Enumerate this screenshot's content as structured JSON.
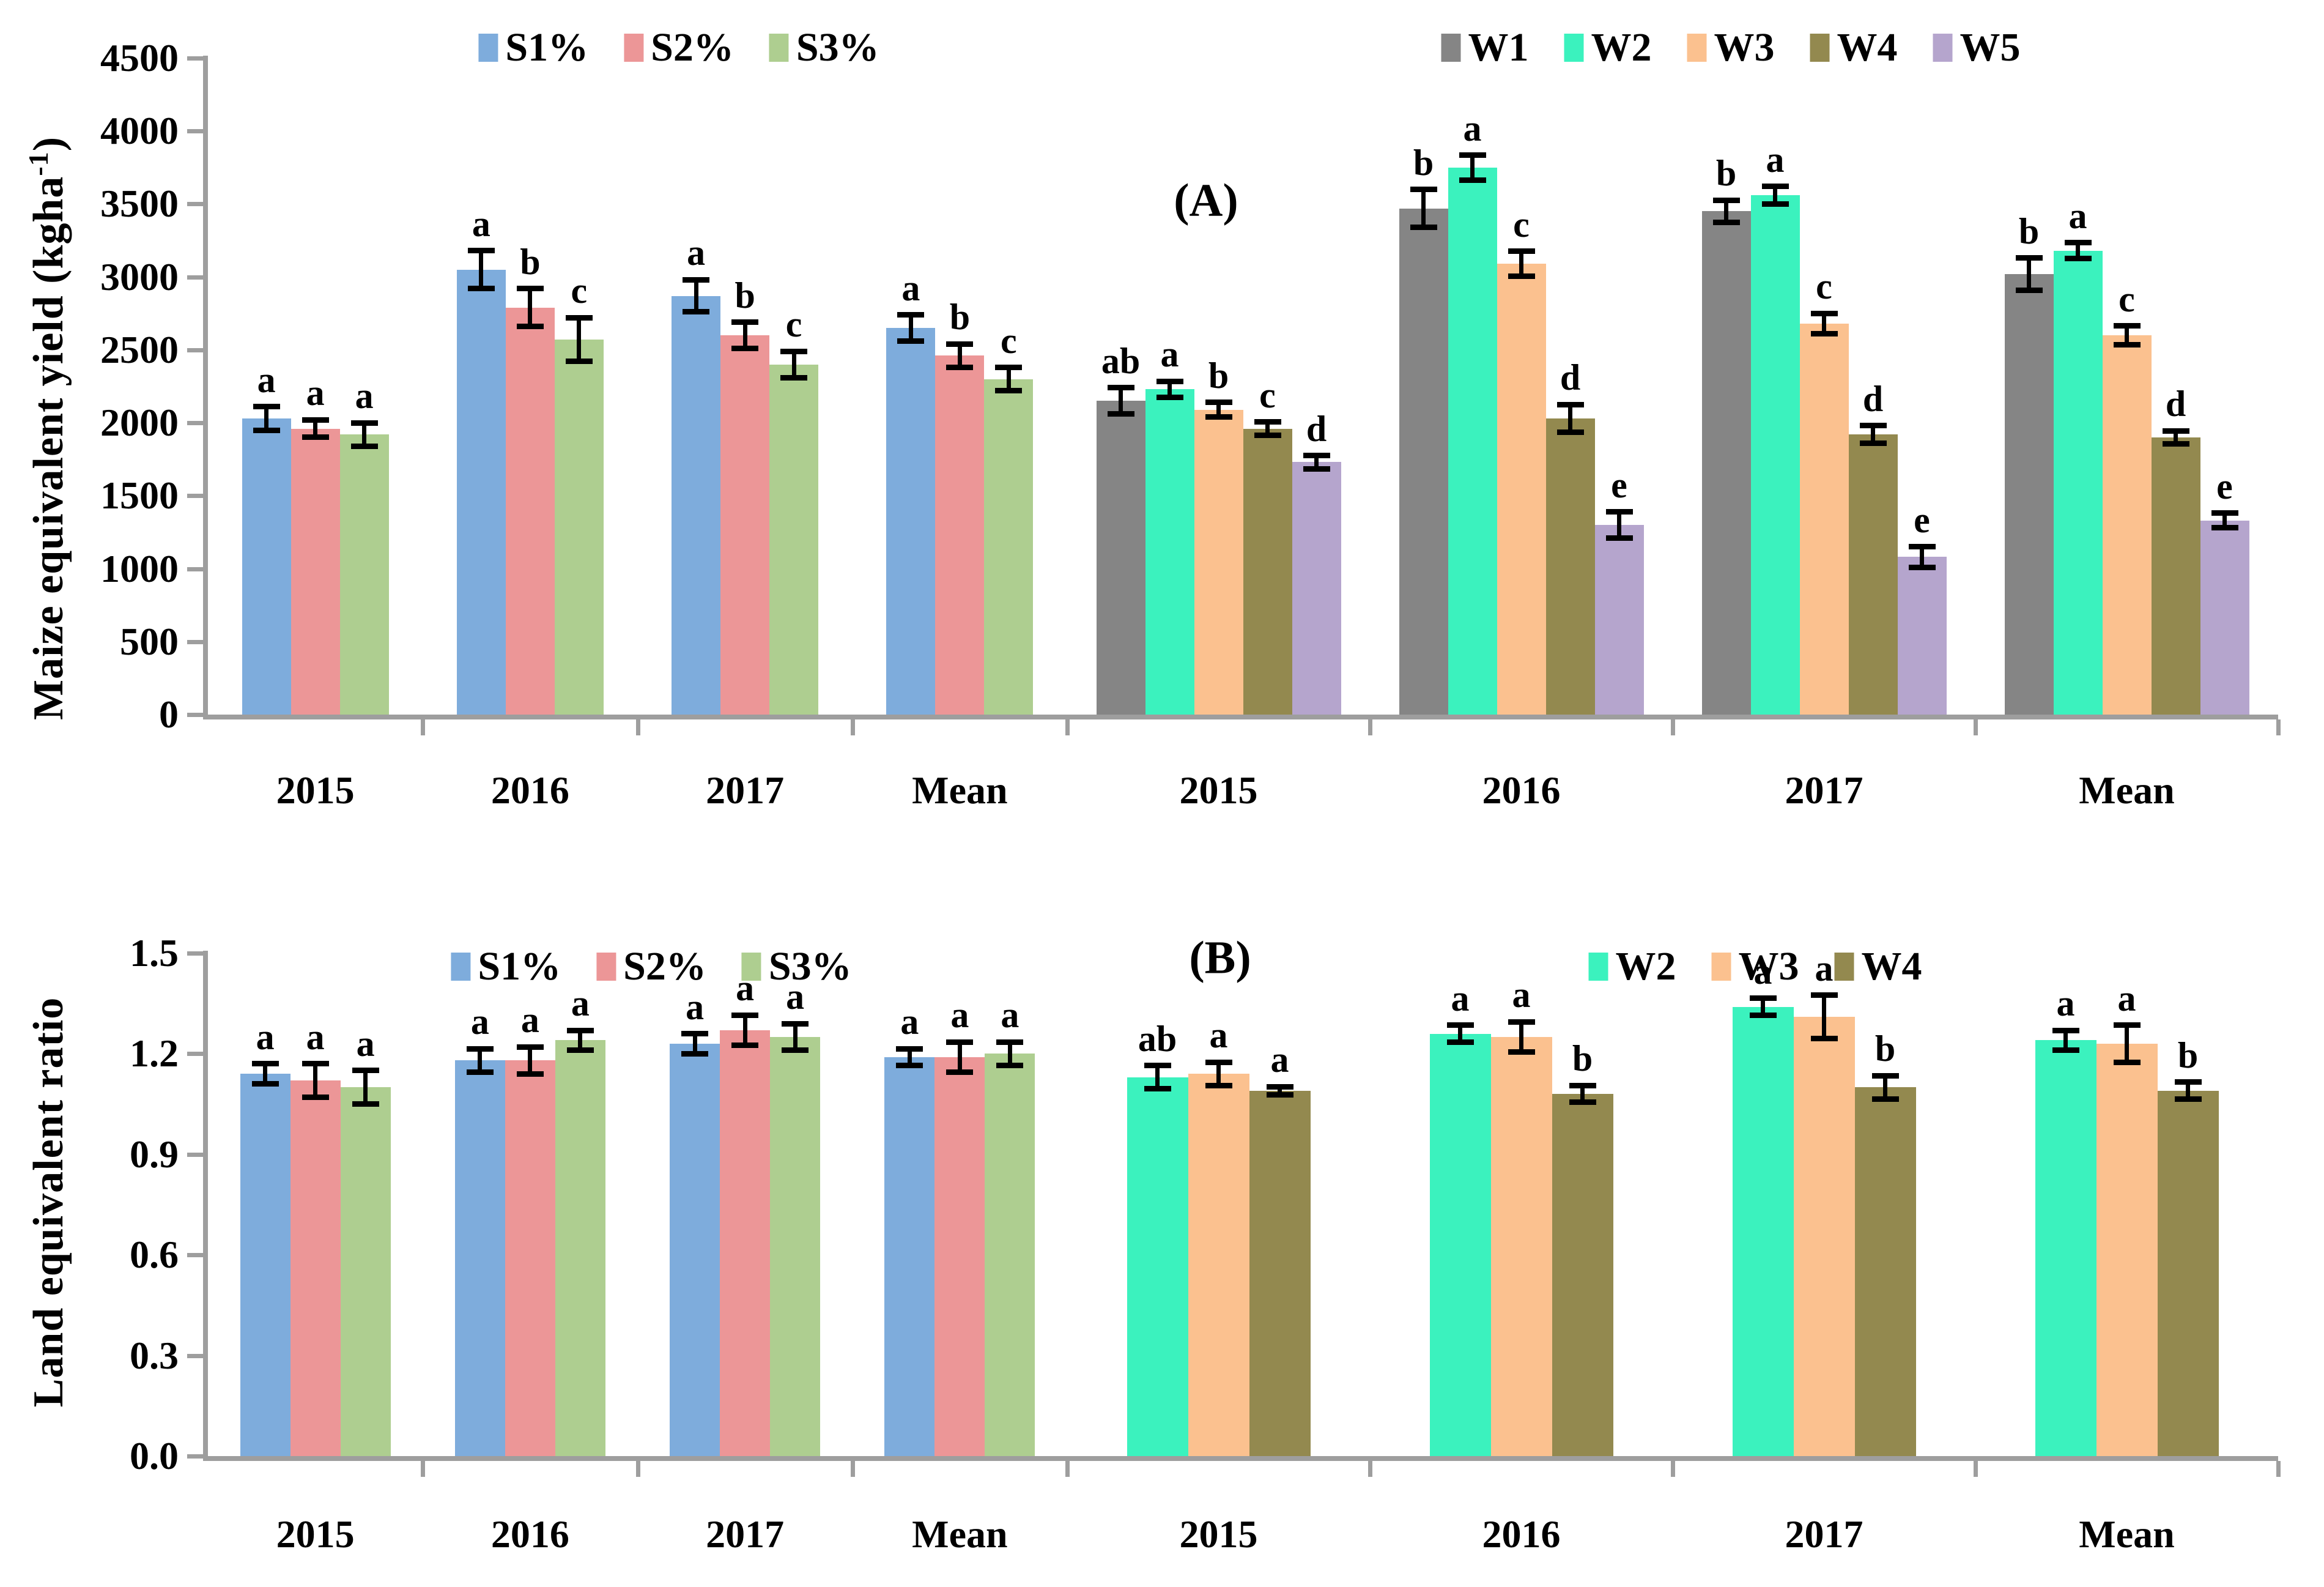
{
  "chart_data": [
    {
      "panel_label": "(A)",
      "type": "bar",
      "title": "",
      "xlabel": "",
      "ylabel_parts": {
        "title": "Maize equivalent yield (kgha",
        "superscript": "-1",
        "suffix": ")"
      },
      "ylim": [
        0,
        4500
      ],
      "ytick_step": 500,
      "grid": false,
      "error_bars": true,
      "legend_position": "top-center",
      "sub_charts": [
        {
          "side": "left",
          "categories": [
            "2015",
            "2016",
            "2017",
            "Mean"
          ],
          "series": [
            {
              "name": "S1%",
              "color": "#7EACDC",
              "values": [
                2030,
                3050,
                2870,
                2650
              ],
              "errors": [
                80,
                130,
                110,
                90
              ],
              "letters": [
                "a",
                "a",
                "a",
                "a"
              ]
            },
            {
              "name": "S2%",
              "color": "#EC9697",
              "values": [
                1960,
                2790,
                2600,
                2460
              ],
              "errors": [
                60,
                130,
                90,
                80
              ],
              "letters": [
                "a",
                "b",
                "b",
                "b"
              ]
            },
            {
              "name": "S3%",
              "color": "#AECE90",
              "values": [
                1920,
                2570,
                2400,
                2300
              ],
              "errors": [
                80,
                150,
                90,
                80
              ],
              "letters": [
                "a",
                "c",
                "c",
                "c"
              ]
            }
          ]
        },
        {
          "side": "right",
          "categories": [
            "2015",
            "2016",
            "2017",
            "Mean"
          ],
          "series": [
            {
              "name": "W1",
              "color": "#858585",
              "values": [
                2150,
                3470,
                3450,
                3020
              ],
              "errors": [
                90,
                130,
                75,
                110
              ],
              "letters": [
                "ab",
                "b",
                "b",
                "b"
              ]
            },
            {
              "name": "W2",
              "color": "#3BF2BE",
              "values": [
                2230,
                3750,
                3560,
                3180
              ],
              "errors": [
                55,
                85,
                60,
                55
              ],
              "letters": [
                "a",
                "a",
                "a",
                "a"
              ]
            },
            {
              "name": "W3",
              "color": "#FBC18F",
              "values": [
                2090,
                3090,
                2680,
                2600
              ],
              "errors": [
                50,
                85,
                70,
                65
              ],
              "letters": [
                "b",
                "c",
                "c",
                "c"
              ]
            },
            {
              "name": "W4",
              "color": "#93894F",
              "values": [
                1960,
                2030,
                1920,
                1900
              ],
              "errors": [
                45,
                95,
                60,
                45
              ],
              "letters": [
                "c",
                "d",
                "d",
                "d"
              ]
            },
            {
              "name": "W5",
              "color": "#B5A5CD",
              "values": [
                1730,
                1300,
                1080,
                1330
              ],
              "errors": [
                45,
                90,
                70,
                50
              ],
              "letters": [
                "d",
                "e",
                "e",
                "e"
              ]
            }
          ]
        }
      ]
    },
    {
      "panel_label": "(B)",
      "type": "bar",
      "title": "",
      "xlabel": "",
      "ylabel_parts": {
        "title": "Land equivalent ratio",
        "superscript": "",
        "suffix": ""
      },
      "ylim": [
        0,
        1.5
      ],
      "ytick_step": 0.3,
      "ytick_decimals": 1,
      "grid": false,
      "error_bars": true,
      "legend_position": "top-center",
      "sub_charts": [
        {
          "side": "left",
          "categories": [
            "2015",
            "2016",
            "2017",
            "Mean"
          ],
          "series": [
            {
              "name": "S1%",
              "color": "#7EACDC",
              "values": [
                1.14,
                1.18,
                1.23,
                1.19
              ],
              "errors": [
                0.03,
                0.035,
                0.03,
                0.025
              ],
              "letters": [
                "a",
                "a",
                "a",
                "a"
              ]
            },
            {
              "name": "S2%",
              "color": "#EC9697",
              "values": [
                1.12,
                1.18,
                1.27,
                1.19
              ],
              "errors": [
                0.05,
                0.04,
                0.045,
                0.045
              ],
              "letters": [
                "a",
                "a",
                "a",
                "a"
              ]
            },
            {
              "name": "S3%",
              "color": "#AECE90",
              "values": [
                1.1,
                1.24,
                1.25,
                1.2
              ],
              "errors": [
                0.05,
                0.03,
                0.04,
                0.035
              ],
              "letters": [
                "a",
                "a",
                "a",
                "a"
              ]
            }
          ]
        },
        {
          "side": "right",
          "categories": [
            "2015",
            "2016",
            "2017",
            "Mean"
          ],
          "series": [
            {
              "name": "W2",
              "color": "#3BF2BE",
              "values": [
                1.13,
                1.26,
                1.34,
                1.24
              ],
              "errors": [
                0.035,
                0.025,
                0.025,
                0.03
              ],
              "letters": [
                "ab",
                "a",
                "a",
                "a"
              ]
            },
            {
              "name": "W3",
              "color": "#FBC18F",
              "values": [
                1.14,
                1.25,
                1.31,
                1.23
              ],
              "errors": [
                0.035,
                0.045,
                0.065,
                0.055
              ],
              "letters": [
                "a",
                "a",
                "a",
                "a"
              ]
            },
            {
              "name": "W4",
              "color": "#93894F",
              "values": [
                1.09,
                1.08,
                1.1,
                1.09
              ],
              "errors": [
                0.012,
                0.025,
                0.035,
                0.025
              ],
              "letters": [
                "a",
                "b",
                "b",
                "b"
              ]
            }
          ]
        }
      ]
    }
  ]
}
